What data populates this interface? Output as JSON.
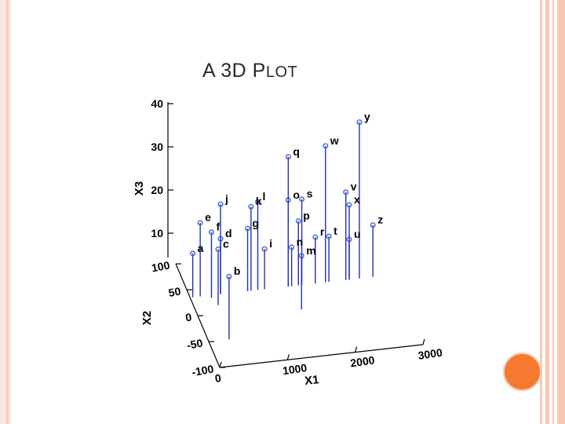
{
  "slide": {
    "title_first": "A 3D P",
    "title_rest": "LOT"
  },
  "chart_data": {
    "type": "scatter",
    "title": "",
    "xlabel": "X1",
    "ylabel": "X2",
    "zlabel": "X3",
    "xlim": [
      0,
      3000
    ],
    "ylim": [
      -100,
      100
    ],
    "zlim": [
      0,
      40
    ],
    "x_ticks": [
      "0",
      "1000",
      "2000",
      "3000"
    ],
    "y_ticks": [
      "-100",
      "-50",
      "0",
      "50",
      "100"
    ],
    "z_ticks": [
      "10",
      "20",
      "30",
      "40"
    ],
    "stem_color": "#2233aa",
    "marker_color": "#4466cc",
    "points": [
      {
        "label": "a",
        "x": 40,
        "y": 95,
        "z": 10
      },
      {
        "label": "b",
        "x": 300,
        "y": 10,
        "z": 10
      },
      {
        "label": "c",
        "x": 350,
        "y": 75,
        "z": 12
      },
      {
        "label": "d",
        "x": 450,
        "y": 95,
        "z": 13
      },
      {
        "label": "e",
        "x": 150,
        "y": 95,
        "z": 17
      },
      {
        "label": "f",
        "x": 300,
        "y": 90,
        "z": 15
      },
      {
        "label": "g",
        "x": 850,
        "y": 95,
        "z": 15
      },
      {
        "label": "j",
        "x": 450,
        "y": 95,
        "z": 21
      },
      {
        "label": "k",
        "x": 900,
        "y": 95,
        "z": 20
      },
      {
        "label": "l",
        "x": 1000,
        "y": 95,
        "z": 21
      },
      {
        "label": "i",
        "x": 1100,
        "y": 95,
        "z": 10
      },
      {
        "label": "m",
        "x": 1500,
        "y": 50,
        "z": 11
      },
      {
        "label": "n",
        "x": 1500,
        "y": 95,
        "z": 10
      },
      {
        "label": "o",
        "x": 1450,
        "y": 95,
        "z": 21
      },
      {
        "label": "p",
        "x": 1600,
        "y": 95,
        "z": 16
      },
      {
        "label": "q",
        "x": 1450,
        "y": 95,
        "z": 31
      },
      {
        "label": "r",
        "x": 1850,
        "y": 95,
        "z": 12
      },
      {
        "label": "s",
        "x": 1650,
        "y": 95,
        "z": 21
      },
      {
        "label": "t",
        "x": 2050,
        "y": 95,
        "z": 12
      },
      {
        "label": "u",
        "x": 2350,
        "y": 95,
        "z": 11
      },
      {
        "label": "v",
        "x": 2300,
        "y": 95,
        "z": 22
      },
      {
        "label": "w",
        "x": 2000,
        "y": 95,
        "z": 33
      },
      {
        "label": "x",
        "x": 2350,
        "y": 95,
        "z": 19
      },
      {
        "label": "y",
        "x": 2500,
        "y": 95,
        "z": 38
      },
      {
        "label": "z",
        "x": 2700,
        "y": 95,
        "z": 14
      }
    ]
  }
}
